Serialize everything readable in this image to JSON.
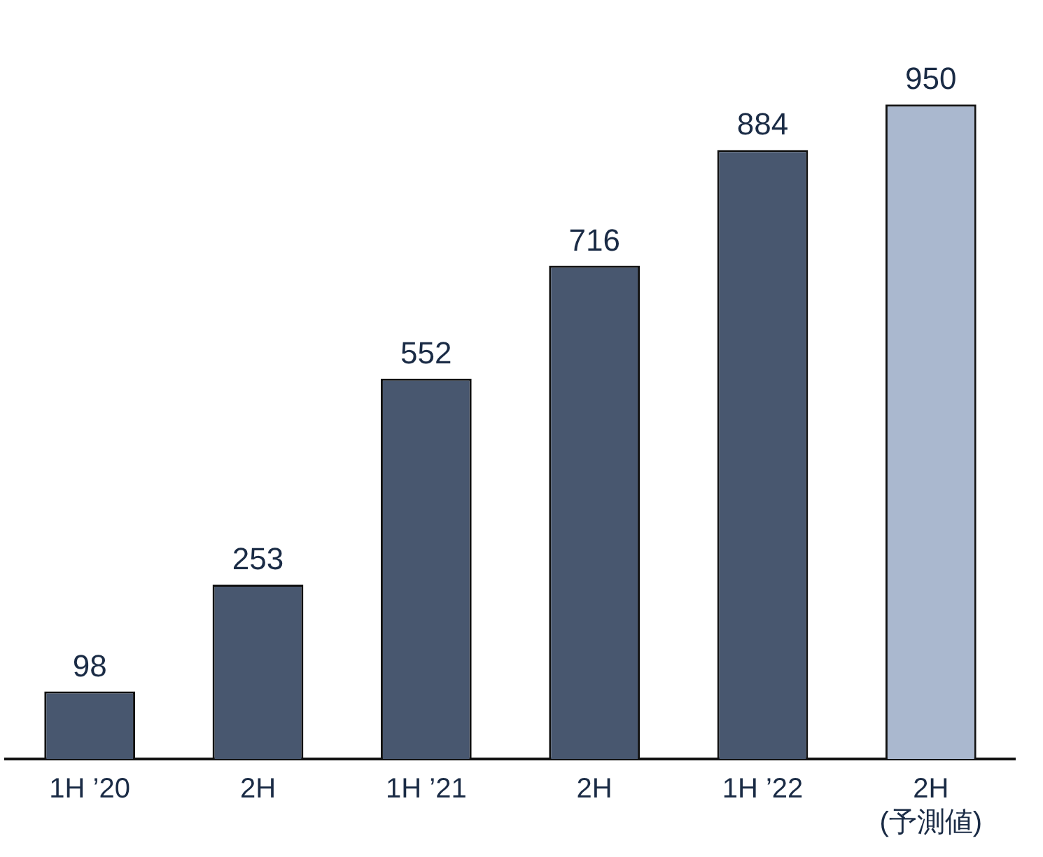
{
  "chart_data": {
    "type": "bar",
    "categories": [
      "1H ’20",
      "2H",
      "1H ’21",
      "2H",
      "1H ’22",
      "2H\n(予測値)"
    ],
    "values": [
      98,
      253,
      552,
      716,
      884,
      950
    ],
    "colors": [
      "#48576f",
      "#48576f",
      "#48576f",
      "#48576f",
      "#48576f",
      "#aab8cf"
    ],
    "data_labels": true,
    "grid": false,
    "legend": false
  }
}
